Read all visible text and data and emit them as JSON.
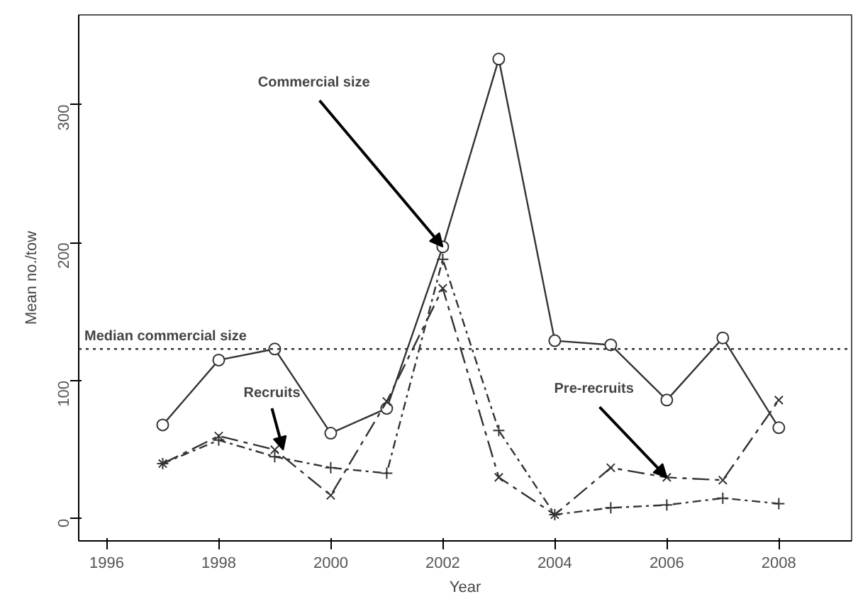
{
  "chart_data": {
    "type": "line",
    "xlabel": "Year",
    "ylabel": "Mean no./tow",
    "x": [
      1997,
      1998,
      1999,
      2000,
      2001,
      2002,
      2003,
      2004,
      2005,
      2006,
      2007,
      2008
    ],
    "series": [
      {
        "color": "#333333",
        "marker": "circle",
        "line_style": "solid",
        "values": [
          68,
          115,
          123,
          62,
          80,
          197,
          333,
          129,
          126,
          86,
          131,
          66
        ]
      },
      {
        "color": "#333333",
        "marker": "x",
        "line_style": "dashed",
        "values": [
          40,
          60,
          50,
          17,
          85,
          167,
          30,
          3,
          37,
          30,
          28,
          86
        ]
      },
      {
        "color": "#333333",
        "marker": "cross",
        "line_style": "dotted",
        "values": [
          40,
          57,
          45,
          37,
          33,
          188,
          64,
          3,
          8,
          10,
          15,
          11
        ]
      }
    ],
    "xlim": [
      1995.5,
      2009.3
    ],
    "ylim": [
      -16,
      365
    ],
    "xticks": [
      1996,
      1998,
      2000,
      2002,
      2004,
      2006,
      2008
    ],
    "yticks": [
      0,
      100,
      200,
      300
    ],
    "ref_lines": [
      {
        "axis": "y",
        "value": 123,
        "label": "Median commercial size",
        "line_style": "dotted"
      }
    ],
    "annotations": [
      {
        "text": "Commercial size",
        "x": 2002,
        "y": 197
      },
      {
        "text": "Recruits",
        "x": 1999.15,
        "y": 50
      },
      {
        "text": "Pre-recruits",
        "x": 2006,
        "y": 30
      }
    ],
    "grid": false
  }
}
